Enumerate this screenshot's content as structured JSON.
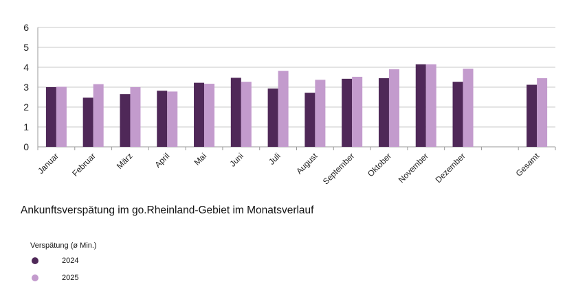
{
  "chart_data": {
    "type": "bar",
    "title": "Ankunftsverspätung im go.Rheinland-Gebiet im Monatsverlauf",
    "xlabel": "",
    "ylabel": "",
    "ylim": [
      0,
      6
    ],
    "yticks": [
      "0",
      "1",
      "2",
      "3",
      "4",
      "5",
      "6"
    ],
    "grid": true,
    "legend_position": "bottom-left",
    "legend_title": "Verspätung (ø Min.)",
    "categories": [
      "Januar",
      "Februar",
      "März",
      "April",
      "Mai",
      "Juni",
      "Juli",
      "August",
      "September",
      "Oktober",
      "November",
      "Dezember",
      "",
      "Gesamt"
    ],
    "series": [
      {
        "name": "2024",
        "color": "#4f2858",
        "values": [
          3.0,
          2.47,
          2.65,
          2.82,
          3.22,
          3.47,
          2.93,
          2.72,
          3.42,
          3.45,
          4.15,
          3.27,
          null,
          3.12
        ]
      },
      {
        "name": "2025",
        "color": "#c39bcd",
        "values": [
          3.02,
          3.15,
          3.0,
          2.78,
          3.17,
          3.27,
          3.82,
          3.37,
          3.52,
          3.9,
          4.15,
          3.93,
          null,
          3.45
        ]
      }
    ]
  }
}
